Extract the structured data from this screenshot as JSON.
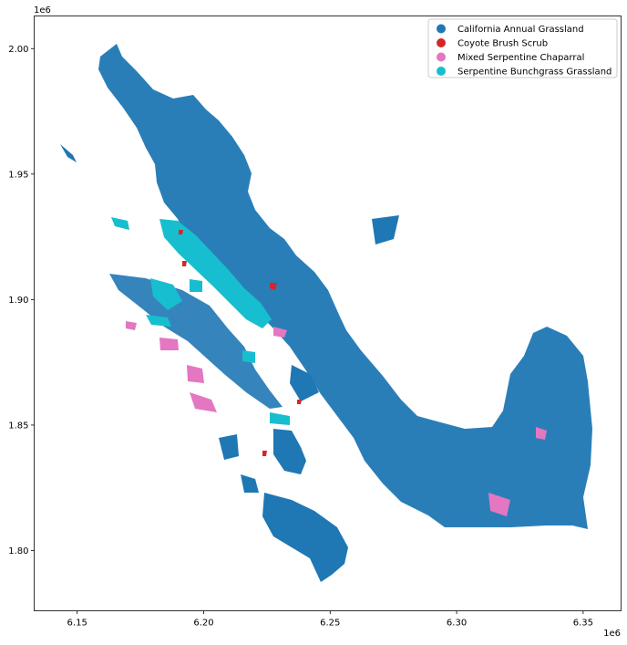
{
  "chart_data": {
    "type": "map",
    "title": "",
    "xlabel": "",
    "ylabel": "",
    "x_offset_label": "1e6",
    "y_offset_label": "1e6",
    "xlim": [
      6.133,
      6.365
    ],
    "ylim": [
      1.776,
      2.013
    ],
    "x_ticks": [
      {
        "value": 6.15,
        "label": "6.15"
      },
      {
        "value": 6.2,
        "label": "6.20"
      },
      {
        "value": 6.25,
        "label": "6.25"
      },
      {
        "value": 6.3,
        "label": "6.30"
      },
      {
        "value": 6.35,
        "label": "6.35"
      }
    ],
    "y_ticks": [
      {
        "value": 1.8,
        "label": "1.80"
      },
      {
        "value": 1.85,
        "label": "1.85"
      },
      {
        "value": 1.9,
        "label": "1.90"
      },
      {
        "value": 1.95,
        "label": "1.95"
      },
      {
        "value": 2.0,
        "label": "2.00"
      }
    ],
    "grid": false,
    "legend_position": "top-right",
    "categories": [
      {
        "name": "California Annual Grassland",
        "color": "#1f77b4"
      },
      {
        "name": "Coyote Brush Scrub",
        "color": "#d62728"
      },
      {
        "name": "Mixed Serpentine Chaparral",
        "color": "#e377c2"
      },
      {
        "name": "Serpentine Bunchgrass Grassland",
        "color": "#17becf"
      }
    ]
  }
}
